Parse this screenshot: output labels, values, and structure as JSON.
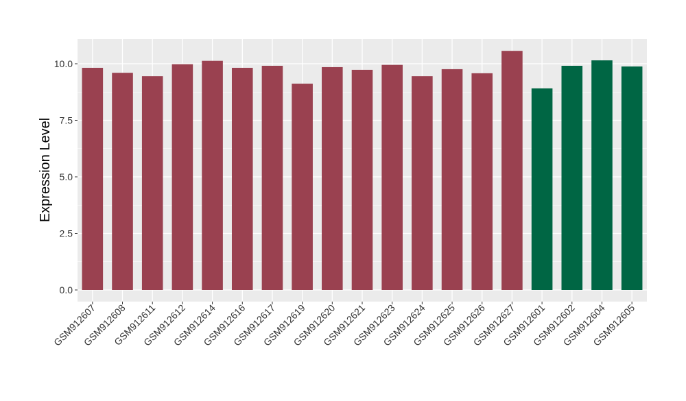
{
  "chart_data": {
    "type": "bar",
    "title": "",
    "xlabel": "",
    "ylabel": "Expression Level",
    "ylim": [
      -0.5,
      11
    ],
    "yticks": [
      0.0,
      2.5,
      5.0,
      7.5,
      10.0
    ],
    "ytick_labels": [
      "0.0",
      "2.5",
      "5.0",
      "7.5",
      "10.0"
    ],
    "grid": true,
    "legend": "none",
    "categories": [
      "GSM912607",
      "GSM912608",
      "GSM912611",
      "GSM912612",
      "GSM912614",
      "GSM912616",
      "GSM912617",
      "GSM912619",
      "GSM912620",
      "GSM912621",
      "GSM912623",
      "GSM912624",
      "GSM912625",
      "GSM912626",
      "GSM912627",
      "GSM912601",
      "GSM912602",
      "GSM912604",
      "GSM912605"
    ],
    "values": [
      9.82,
      9.6,
      9.45,
      9.98,
      10.13,
      9.82,
      9.91,
      9.12,
      9.85,
      9.73,
      9.95,
      9.45,
      9.76,
      9.58,
      10.57,
      8.91,
      9.91,
      10.15,
      9.88
    ],
    "group_colors": [
      "#9A4150",
      "#9A4150",
      "#9A4150",
      "#9A4150",
      "#9A4150",
      "#9A4150",
      "#9A4150",
      "#9A4150",
      "#9A4150",
      "#9A4150",
      "#9A4150",
      "#9A4150",
      "#9A4150",
      "#9A4150",
      "#9A4150",
      "#006644",
      "#006644",
      "#006644",
      "#006644"
    ],
    "panel_background": "#EBEBEB"
  }
}
